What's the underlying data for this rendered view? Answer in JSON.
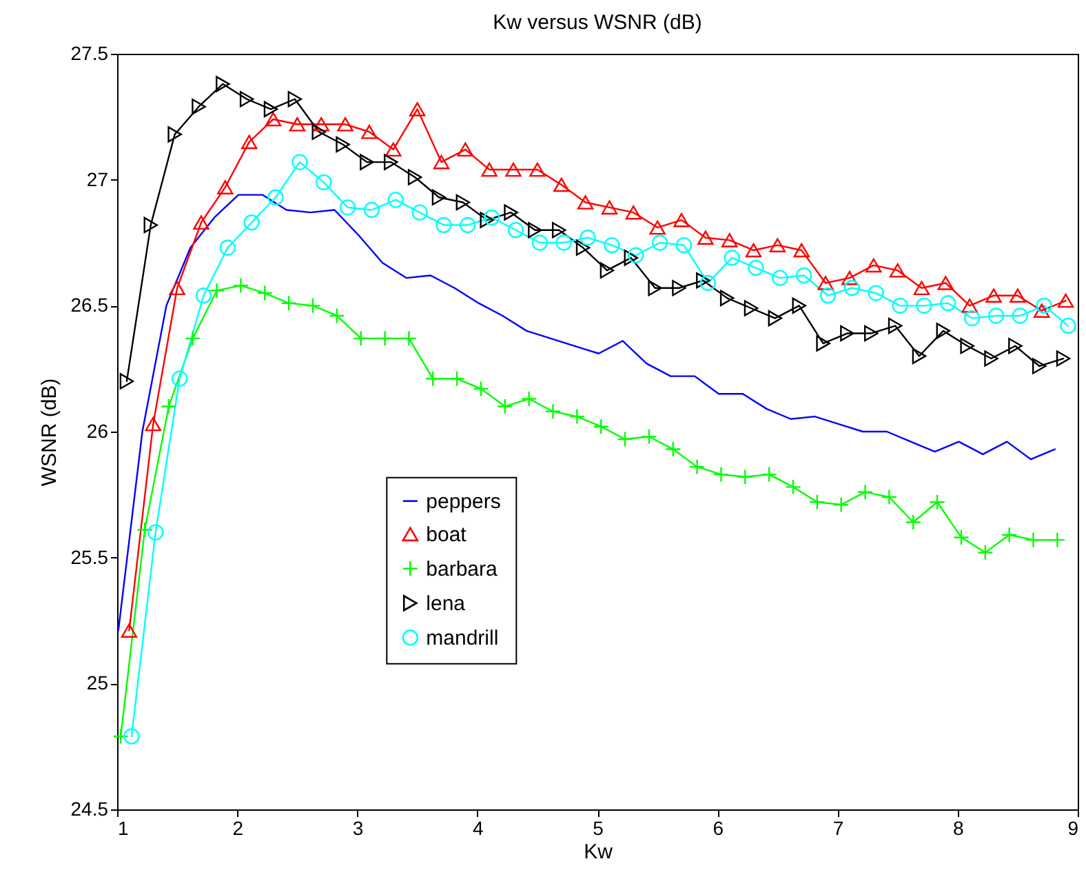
{
  "chart_data": {
    "type": "line",
    "title": "Kw versus WSNR (dB)",
    "xlabel": "Kw",
    "ylabel": "WSNR (dB)",
    "xlim": [
      1,
      9
    ],
    "xticks": [
      1,
      2,
      3,
      4,
      5,
      6,
      7,
      8,
      9
    ],
    "ylim": [
      24.5,
      27.5
    ],
    "yticks": [
      24.5,
      25,
      25.5,
      26,
      26.5,
      27,
      27.5
    ],
    "grid": false,
    "legend": "bottom left",
    "line_style": "solid",
    "series": [
      {
        "name": "peppers",
        "color": "#0000ff",
        "marker": "none",
        "x": [
          1.01,
          1.21,
          1.41,
          1.61,
          1.81,
          2.01,
          2.21,
          2.41,
          2.61,
          2.81,
          3.01,
          3.21,
          3.41,
          3.61,
          3.81,
          4.01,
          4.21,
          4.41,
          4.61,
          4.81,
          5.01,
          5.21,
          5.41,
          5.61,
          5.81,
          6.01,
          6.21,
          6.41,
          6.61,
          6.81,
          7.01,
          7.21,
          7.41,
          7.61,
          7.81,
          8.01,
          8.21,
          8.41,
          8.61,
          8.81
        ],
        "values": [
          25.21,
          26.0,
          26.5,
          26.73,
          26.85,
          26.94,
          26.94,
          26.88,
          26.87,
          26.88,
          26.78,
          26.67,
          26.61,
          26.62,
          26.57,
          26.51,
          26.46,
          26.4,
          26.37,
          26.34,
          26.31,
          26.36,
          26.27,
          26.22,
          26.22,
          26.15,
          26.15,
          26.09,
          26.05,
          26.06,
          26.03,
          26.0,
          26.0,
          25.96,
          25.92,
          25.96,
          25.91,
          25.96,
          25.89,
          25.93
        ]
      },
      {
        "name": "boat",
        "color": "#ff0000",
        "marker": "triangle",
        "x": [
          1.1,
          1.3,
          1.5,
          1.7,
          1.9,
          2.1,
          2.3,
          2.5,
          2.7,
          2.9,
          3.1,
          3.3,
          3.5,
          3.7,
          3.9,
          4.1,
          4.3,
          4.5,
          4.7,
          4.9,
          5.1,
          5.3,
          5.5,
          5.7,
          5.9,
          6.1,
          6.3,
          6.5,
          6.7,
          6.9,
          7.1,
          7.3,
          7.5,
          7.7,
          7.9,
          8.1,
          8.3,
          8.5,
          8.7,
          8.9
        ],
        "values": [
          25.21,
          26.03,
          26.57,
          26.83,
          26.97,
          27.15,
          27.24,
          27.22,
          27.22,
          27.22,
          27.19,
          27.12,
          27.28,
          27.07,
          27.12,
          27.04,
          27.04,
          27.04,
          26.98,
          26.91,
          26.89,
          26.87,
          26.81,
          26.84,
          26.77,
          26.76,
          26.72,
          26.74,
          26.72,
          26.59,
          26.61,
          26.66,
          26.64,
          26.57,
          26.59,
          26.5,
          26.54,
          26.54,
          26.48,
          26.52
        ]
      },
      {
        "name": "barbara",
        "color": "#00ff00",
        "marker": "cross",
        "x": [
          1.03,
          1.23,
          1.43,
          1.63,
          1.83,
          2.03,
          2.23,
          2.43,
          2.63,
          2.83,
          3.03,
          3.23,
          3.43,
          3.63,
          3.83,
          4.03,
          4.23,
          4.43,
          4.63,
          4.83,
          5.03,
          5.23,
          5.43,
          5.63,
          5.83,
          6.03,
          6.23,
          6.43,
          6.63,
          6.83,
          7.03,
          7.23,
          7.43,
          7.63,
          7.83,
          8.03,
          8.23,
          8.43,
          8.63,
          8.83
        ],
        "values": [
          24.79,
          25.61,
          26.1,
          26.37,
          26.56,
          26.58,
          26.55,
          26.51,
          26.5,
          26.46,
          26.37,
          26.37,
          26.37,
          26.21,
          26.21,
          26.17,
          26.1,
          26.13,
          26.08,
          26.06,
          26.02,
          25.97,
          25.98,
          25.93,
          25.86,
          25.83,
          25.82,
          25.83,
          25.78,
          25.72,
          25.71,
          25.76,
          25.74,
          25.64,
          25.72,
          25.58,
          25.52,
          25.59,
          25.57,
          25.57
        ]
      },
      {
        "name": "lena",
        "color": "#000000",
        "marker": "triangle-right",
        "x": [
          1.08,
          1.28,
          1.48,
          1.68,
          1.88,
          2.08,
          2.28,
          2.48,
          2.68,
          2.88,
          3.08,
          3.28,
          3.48,
          3.68,
          3.88,
          4.08,
          4.28,
          4.48,
          4.68,
          4.88,
          5.08,
          5.28,
          5.48,
          5.68,
          5.88,
          6.08,
          6.28,
          6.48,
          6.68,
          6.88,
          7.08,
          7.28,
          7.48,
          7.68,
          7.88,
          8.08,
          8.28,
          8.48,
          8.68,
          8.88
        ],
        "values": [
          26.2,
          26.82,
          27.18,
          27.29,
          27.38,
          27.32,
          27.28,
          27.32,
          27.19,
          27.14,
          27.07,
          27.07,
          27.01,
          26.93,
          26.91,
          26.84,
          26.87,
          26.8,
          26.8,
          26.73,
          26.64,
          26.69,
          26.57,
          26.57,
          26.6,
          26.53,
          26.49,
          26.45,
          26.5,
          26.35,
          26.39,
          26.39,
          26.42,
          26.3,
          26.4,
          26.34,
          26.29,
          26.34,
          26.26,
          26.29
        ]
      },
      {
        "name": "mandrill",
        "color": "#00ffff",
        "marker": "circle",
        "x": [
          1.12,
          1.32,
          1.52,
          1.72,
          1.92,
          2.12,
          2.32,
          2.52,
          2.72,
          2.92,
          3.12,
          3.32,
          3.52,
          3.72,
          3.92,
          4.12,
          4.32,
          4.52,
          4.72,
          4.92,
          5.12,
          5.32,
          5.52,
          5.72,
          5.92,
          6.12,
          6.32,
          6.52,
          6.72,
          6.92,
          7.12,
          7.32,
          7.52,
          7.72,
          7.92,
          8.12,
          8.32,
          8.52,
          8.72,
          8.92
        ],
        "values": [
          24.79,
          25.6,
          26.21,
          26.54,
          26.73,
          26.83,
          26.93,
          27.07,
          26.99,
          26.89,
          26.88,
          26.92,
          26.87,
          26.82,
          26.82,
          26.85,
          26.8,
          26.75,
          26.75,
          26.77,
          26.74,
          26.7,
          26.75,
          26.74,
          26.59,
          26.69,
          26.65,
          26.61,
          26.62,
          26.54,
          26.57,
          26.55,
          26.5,
          26.5,
          26.51,
          26.45,
          26.46,
          26.46,
          26.5,
          26.42
        ]
      }
    ]
  }
}
